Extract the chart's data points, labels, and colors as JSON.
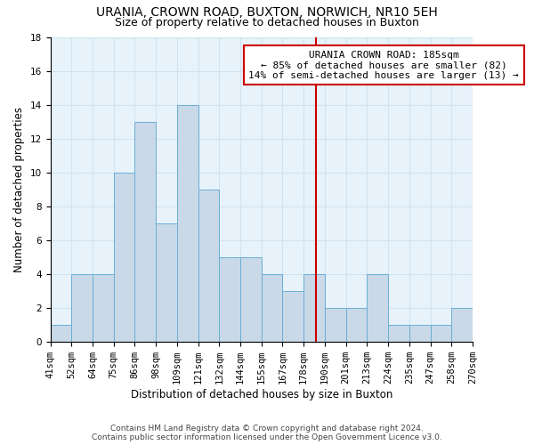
{
  "title": "URANIA, CROWN ROAD, BUXTON, NORWICH, NR10 5EH",
  "subtitle": "Size of property relative to detached houses in Buxton",
  "xlabel": "Distribution of detached houses by size in Buxton",
  "ylabel": "Number of detached properties",
  "bin_labels": [
    "41sqm",
    "52sqm",
    "64sqm",
    "75sqm",
    "86sqm",
    "98sqm",
    "109sqm",
    "121sqm",
    "132sqm",
    "144sqm",
    "155sqm",
    "167sqm",
    "178sqm",
    "190sqm",
    "201sqm",
    "213sqm",
    "224sqm",
    "235sqm",
    "247sqm",
    "258sqm",
    "270sqm"
  ],
  "bin_edges": [
    41,
    52,
    64,
    75,
    86,
    98,
    109,
    121,
    132,
    144,
    155,
    167,
    178,
    190,
    201,
    213,
    224,
    235,
    247,
    258,
    270
  ],
  "counts": [
    1,
    4,
    4,
    10,
    13,
    7,
    14,
    9,
    5,
    5,
    4,
    3,
    4,
    2,
    2,
    4,
    1,
    1,
    1,
    2
  ],
  "bar_color": "#c9d9e8",
  "bar_edge_color": "#6aaed6",
  "property_value": 185,
  "vline_color": "#cc0000",
  "annotation_text": "URANIA CROWN ROAD: 185sqm\n← 85% of detached houses are smaller (82)\n14% of semi-detached houses are larger (13) →",
  "annotation_box_color": "#cc0000",
  "ylim": [
    0,
    18
  ],
  "yticks": [
    0,
    2,
    4,
    6,
    8,
    10,
    12,
    14,
    16,
    18
  ],
  "grid_color": "#d0e4f0",
  "background_color": "#e8f2fb",
  "footer": "Contains HM Land Registry data © Crown copyright and database right 2024.\nContains public sector information licensed under the Open Government Licence v3.0.",
  "title_fontsize": 10,
  "subtitle_fontsize": 9,
  "axis_label_fontsize": 8.5,
  "tick_fontsize": 7.5,
  "annotation_fontsize": 8
}
